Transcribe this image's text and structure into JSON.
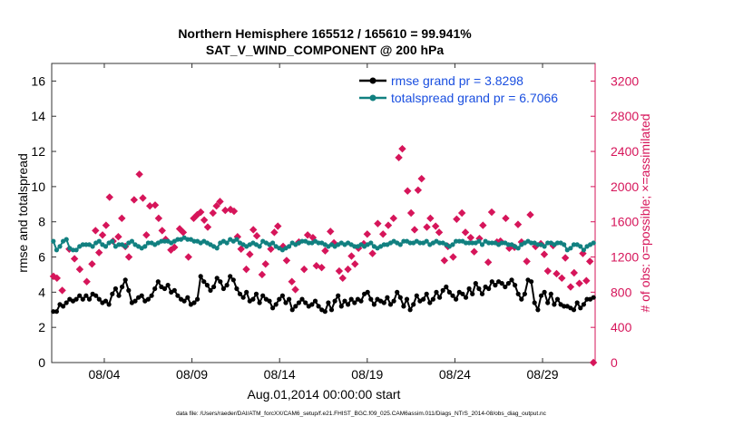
{
  "chart_data": {
    "type": "line",
    "title_line1": "Northern Hemisphere 165512 / 165610 = 99.941%",
    "title_line2": "SAT_V_WIND_COMPONENT @ 200 hPa",
    "xlabel": "Aug.01,2014 00:00:00 start",
    "ylabel_left": "rmse and totalspread",
    "ylabel_right": "# of obs: o=possible; ×=assimilated",
    "footnote": "data file: /Users/raeder/DAI/ATM_forcXX/CAM6_setup/f.e21.FHIST_BGC.f09_025.CAM6assim.011/Diags_NTrS_2014-08/obs_diag_output.nc",
    "xlim": [
      1,
      32
    ],
    "x_ticks": [
      4,
      9,
      14,
      19,
      24,
      29
    ],
    "x_tick_labels": [
      "08/04",
      "08/09",
      "08/14",
      "08/19",
      "08/24",
      "08/29"
    ],
    "ylim_left": [
      0,
      17
    ],
    "y_ticks_left": [
      0,
      2,
      4,
      6,
      8,
      10,
      12,
      14,
      16
    ],
    "ylim_right": [
      0,
      3400
    ],
    "y_ticks_right": [
      0,
      400,
      800,
      1200,
      1600,
      2000,
      2400,
      2800,
      3200
    ],
    "grid": false,
    "legend_position": "top-right",
    "colors": {
      "rmse": "#000000",
      "spread": "#118080",
      "obs": "#d6155a",
      "legend_text": "#1a4fe0",
      "right_axis": "#d6155a"
    },
    "series": [
      {
        "name": "rmse grand pr = 3.8298",
        "axis": "left",
        "values": [
          2.9,
          2.9,
          3.3,
          3.2,
          3.4,
          3.6,
          3.5,
          3.6,
          3.8,
          3.6,
          3.8,
          3.6,
          3.9,
          3.8,
          3.6,
          3.4,
          3.5,
          3.3,
          3.9,
          4.2,
          3.8,
          4.3,
          4.7,
          4.1,
          3.4,
          3.5,
          3.7,
          3.8,
          3.5,
          3.6,
          3.8,
          4.2,
          4.6,
          4.3,
          4.2,
          4.4,
          4.0,
          4.1,
          3.8,
          3.6,
          3.5,
          3.7,
          3.3,
          3.4,
          3.6,
          4.9,
          4.6,
          4.4,
          4.1,
          4.3,
          4.8,
          4.6,
          4.2,
          4.4,
          4.9,
          4.7,
          4.2,
          3.9,
          3.7,
          4.0,
          3.5,
          3.6,
          3.9,
          3.4,
          3.8,
          3.6,
          3.5,
          3.1,
          3.3,
          3.6,
          3.8,
          3.4,
          3.6,
          3.0,
          3.2,
          3.4,
          3.6,
          3.4,
          3.2,
          3.3,
          3.5,
          3.2,
          3.0,
          2.9,
          3.4,
          3.0,
          3.5,
          3.8,
          3.2,
          3.5,
          3.3,
          3.6,
          3.4,
          3.6,
          3.5,
          3.9,
          4.0,
          3.6,
          3.3,
          3.6,
          3.5,
          3.4,
          3.7,
          3.3,
          3.5,
          4.0,
          3.7,
          3.2,
          3.6,
          3.0,
          3.3,
          3.8,
          3.5,
          3.6,
          3.9,
          3.4,
          3.6,
          4.0,
          3.7,
          4.1,
          4.3,
          4.0,
          3.8,
          3.6,
          4.0,
          3.9,
          3.7,
          4.2,
          3.9,
          4.5,
          4.2,
          3.9,
          4.3,
          4.2,
          4.6,
          4.4,
          4.6,
          4.5,
          4.3,
          4.5,
          4.7,
          4.4,
          3.9,
          3.6,
          3.9,
          4.7,
          4.6,
          3.4,
          3.0,
          3.8,
          4.0,
          3.4,
          3.9,
          3.3,
          3.6,
          3.3,
          3.2,
          3.2,
          3.1,
          3.0,
          3.4,
          3.1,
          3.3,
          3.6,
          3.6,
          3.7
        ]
      },
      {
        "name": "totalspread grand pr = 6.7066",
        "axis": "left",
        "values": [
          6.9,
          6.4,
          6.6,
          6.9,
          7.0,
          6.5,
          6.4,
          6.4,
          6.6,
          6.7,
          6.7,
          6.7,
          6.6,
          6.8,
          6.9,
          6.7,
          6.6,
          6.8,
          6.9,
          6.6,
          6.7,
          6.7,
          6.6,
          6.8,
          6.9,
          6.7,
          6.6,
          6.5,
          6.6,
          6.8,
          6.8,
          6.7,
          6.8,
          6.9,
          6.9,
          6.9,
          6.8,
          6.9,
          7.0,
          7.0,
          7.1,
          7.0,
          7.0,
          6.9,
          6.9,
          6.8,
          6.9,
          6.8,
          6.7,
          6.6,
          6.5,
          6.8,
          6.9,
          6.8,
          7.0,
          6.9,
          7.0,
          6.8,
          6.7,
          6.6,
          6.7,
          6.8,
          6.7,
          6.6,
          6.9,
          6.8,
          6.7,
          6.8,
          6.6,
          6.5,
          6.4,
          6.5,
          6.6,
          6.8,
          6.7,
          6.8,
          6.9,
          6.9,
          6.8,
          6.8,
          6.9,
          6.8,
          6.8,
          6.7,
          6.6,
          6.7,
          6.6,
          6.7,
          6.8,
          6.7,
          6.8,
          6.7,
          6.6,
          6.6,
          6.7,
          6.6,
          6.7,
          6.8,
          6.6,
          6.5,
          6.6,
          6.7,
          6.7,
          6.8,
          6.9,
          6.8,
          6.7,
          6.9,
          6.9,
          6.8,
          6.8,
          6.9,
          6.8,
          6.8,
          6.9,
          6.7,
          6.8,
          6.9,
          6.8,
          6.8,
          6.7,
          6.6,
          6.7,
          6.9,
          6.9,
          6.9,
          6.8,
          6.8,
          6.8,
          6.8,
          6.9,
          6.7,
          6.9,
          6.8,
          6.8,
          6.8,
          6.7,
          6.8,
          6.8,
          6.7,
          6.7,
          6.6,
          6.5,
          6.7,
          6.8,
          6.9,
          6.8,
          6.8,
          6.7,
          6.7,
          6.6,
          6.8,
          6.8,
          6.7,
          6.8,
          6.8,
          6.7,
          6.4,
          6.5,
          6.7,
          6.7,
          6.6,
          6.4,
          6.6,
          6.7,
          6.8
        ]
      }
    ],
    "obs_points": {
      "name": "# of obs",
      "axis": "right",
      "x": [
        1.1,
        1.3,
        1.6,
        2.0,
        2.3,
        2.6,
        3.0,
        3.3,
        3.5,
        3.7,
        3.9,
        4.1,
        4.3,
        4.5,
        4.8,
        5.0,
        5.2,
        5.4,
        5.7,
        6.0,
        6.2,
        6.4,
        6.6,
        6.9,
        7.1,
        7.3,
        7.5,
        7.8,
        8.0,
        8.3,
        8.5,
        8.8,
        9.1,
        9.3,
        9.5,
        9.7,
        9.9,
        10.2,
        10.4,
        10.6,
        10.9,
        11.2,
        11.4,
        11.6,
        11.8,
        12.1,
        12.3,
        12.5,
        12.7,
        13.0,
        13.2,
        13.5,
        13.7,
        13.9,
        14.2,
        14.4,
        14.7,
        14.9,
        15.1,
        15.4,
        15.6,
        15.9,
        16.1,
        16.4,
        16.6,
        16.9,
        17.1,
        17.4,
        17.6,
        17.9,
        18.1,
        18.3,
        18.5,
        18.8,
        19.0,
        19.3,
        19.6,
        19.9,
        20.2,
        20.5,
        20.8,
        21.0,
        21.3,
        21.5,
        21.7,
        21.9,
        22.1,
        22.4,
        22.6,
        22.9,
        23.1,
        23.4,
        23.6,
        23.9,
        24.1,
        24.4,
        24.6,
        24.9,
        25.1,
        25.4,
        25.6,
        25.9,
        26.1,
        26.4,
        26.6,
        26.9,
        27.1,
        27.4,
        27.6,
        27.8,
        28.1,
        28.3,
        28.6,
        28.9,
        29.1,
        29.3,
        29.6,
        29.8,
        30.1,
        30.3,
        30.6,
        30.8,
        31.1,
        31.3,
        31.5,
        31.7
      ],
      "values": [
        980,
        960,
        820,
        1290,
        1180,
        1060,
        920,
        1120,
        1500,
        1250,
        1450,
        1560,
        1880,
        1380,
        1430,
        1640,
        1320,
        1200,
        1850,
        2140,
        1870,
        1450,
        1780,
        1790,
        1640,
        1500,
        1400,
        1280,
        1310,
        1520,
        1480,
        1200,
        1640,
        1680,
        1710,
        1620,
        1540,
        1700,
        1780,
        1830,
        1730,
        1740,
        1720,
        1430,
        1290,
        1060,
        1230,
        1510,
        1440,
        1000,
        1120,
        1290,
        1480,
        1550,
        1320,
        1160,
        920,
        830,
        1370,
        1060,
        1450,
        1420,
        1100,
        1080,
        1270,
        1490,
        1360,
        1040,
        960,
        1060,
        1210,
        1120,
        1300,
        1350,
        1460,
        1240,
        1580,
        1460,
        1560,
        1640,
        2330,
        2430,
        1950,
        1700,
        1510,
        1960,
        2090,
        1540,
        1640,
        1550,
        1480,
        1160,
        1320,
        1200,
        1630,
        1700,
        1480,
        1420,
        1260,
        1410,
        1560,
        1140,
        1710,
        1370,
        1380,
        1640,
        1300,
        1310,
        1570,
        1370,
        1150,
        1680,
        1320,
        1350,
        1230,
        1040,
        1330,
        1010,
        960,
        1190,
        860,
        1020,
        900,
        1240,
        930,
        1150
      ],
      "last_point": {
        "x": 31.9,
        "value": 0
      }
    }
  }
}
